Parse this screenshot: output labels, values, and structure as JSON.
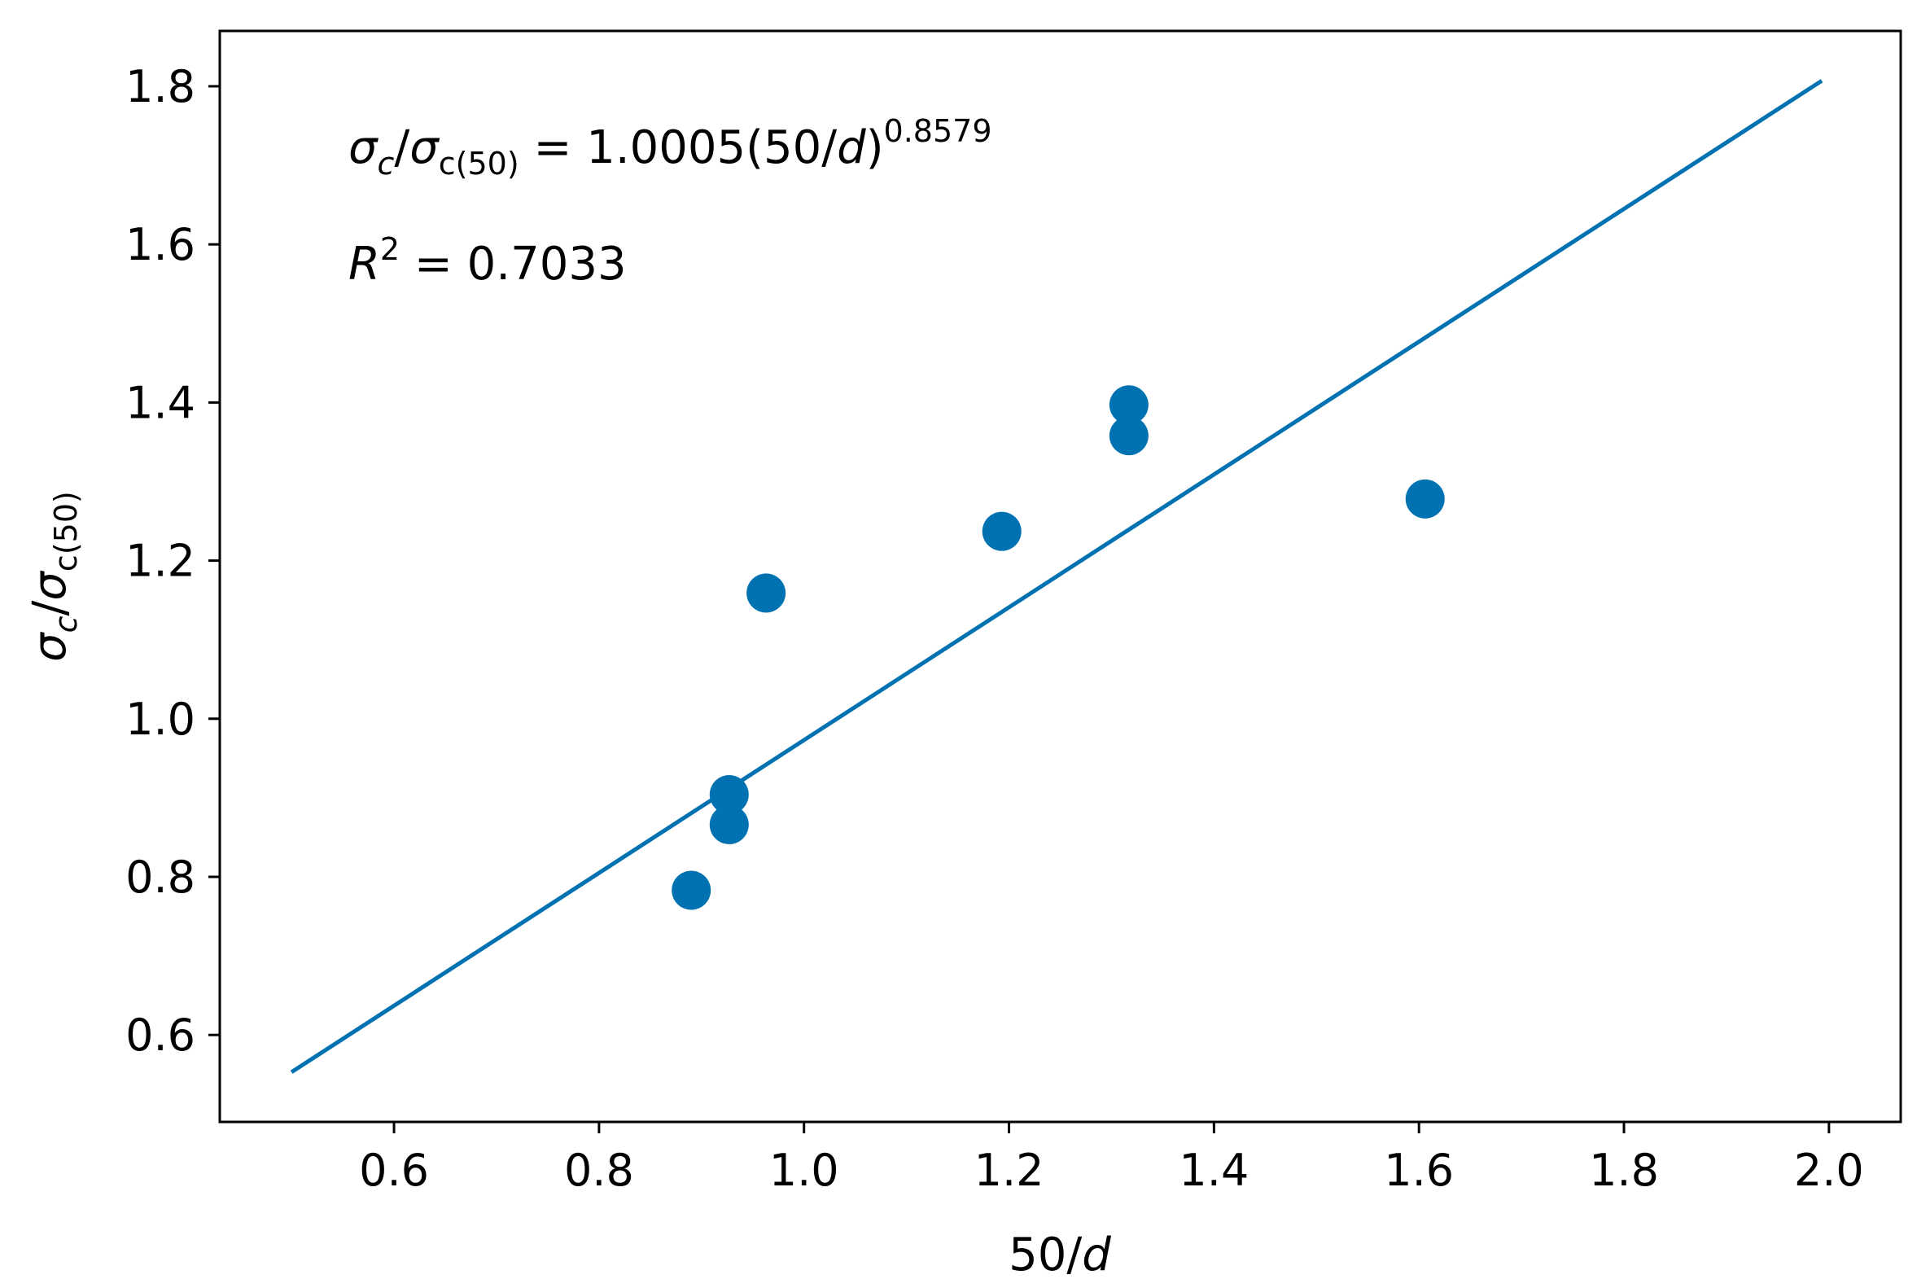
{
  "chart_data": {
    "type": "scatter",
    "title": "",
    "xlabel": {
      "main": "50/",
      "var": "d"
    },
    "ylabel": {
      "sym": "σ",
      "sub": "c",
      "slash": "/",
      "sym2": "σ",
      "sub2": "c(50)"
    },
    "xlim": [
      0.43,
      2.07
    ],
    "ylim": [
      0.49,
      1.87
    ],
    "xticks": [
      0.6,
      0.8,
      1.0,
      1.2,
      1.4,
      1.6,
      1.8,
      2.0
    ],
    "xtick_labels": [
      "0.6",
      "0.8",
      "1.0",
      "1.2",
      "1.4",
      "1.6",
      "1.8",
      "2.0"
    ],
    "yticks": [
      0.6,
      0.8,
      1.0,
      1.2,
      1.4,
      1.6,
      1.8
    ],
    "ytick_labels": [
      "0.6",
      "0.8",
      "1.0",
      "1.2",
      "1.4",
      "1.6",
      "1.8"
    ],
    "grid": false,
    "color": "#0072b2",
    "series": [
      {
        "name": "data",
        "kind": "scatter",
        "points": [
          {
            "x": 0.89,
            "y": 0.783
          },
          {
            "x": 0.927,
            "y": 0.866
          },
          {
            "x": 0.927,
            "y": 0.904
          },
          {
            "x": 0.963,
            "y": 1.159
          },
          {
            "x": 1.193,
            "y": 1.237
          },
          {
            "x": 1.317,
            "y": 1.358
          },
          {
            "x": 1.317,
            "y": 1.397
          },
          {
            "x": 1.606,
            "y": 1.278
          }
        ]
      },
      {
        "name": "fit",
        "kind": "line",
        "points": [
          {
            "x": 0.5,
            "y": 0.553
          },
          {
            "x": 1.993,
            "y": 1.807
          }
        ]
      }
    ],
    "annotations": {
      "equation": {
        "lhs_sym": "σ",
        "lhs_sub": "c",
        "slash": "/",
        "lhs_sym2": "σ",
        "lhs_sub2": "c(50)",
        "rhs_pre": " = 1.0005(50/",
        "rhs_var": "d",
        "rhs_close": ")",
        "exponent": "0.8579"
      },
      "r2": {
        "sym": "R",
        "sup": "2",
        "rhs": " = 0.7033"
      }
    }
  }
}
